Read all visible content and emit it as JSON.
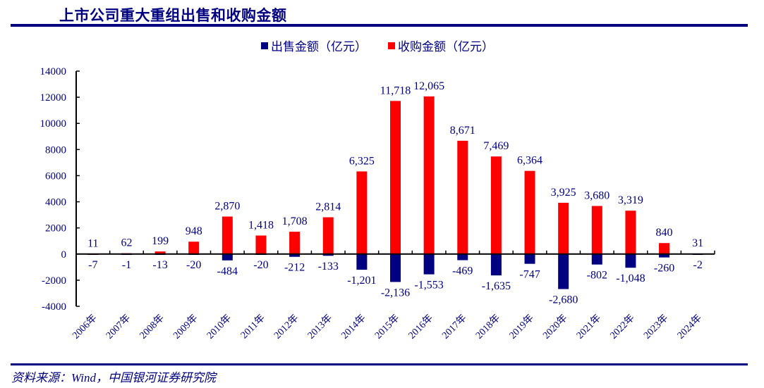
{
  "header": {
    "title": "上市公司重大重组出售和收购金额"
  },
  "footer": {
    "source": "资料来源：Wind，中国银河证券研究院"
  },
  "colors": {
    "sell": "#000080",
    "buy": "#FF0000",
    "text": "#000080",
    "axis": "#000000"
  },
  "chart_data": {
    "type": "bar",
    "title": "上市公司重大重组出售和收购金额",
    "xlabel": "",
    "ylabel": "",
    "ylim": [
      -4000,
      14000
    ],
    "yticks": [
      -4000,
      -2000,
      0,
      2000,
      4000,
      6000,
      8000,
      10000,
      12000,
      14000
    ],
    "grid": false,
    "legend": "top-center",
    "categories": [
      "2006年",
      "2007年",
      "2008年",
      "2009年",
      "2010年",
      "2011年",
      "2012年",
      "2013年",
      "2014年",
      "2015年",
      "2016年",
      "2017年",
      "2018年",
      "2019年",
      "2020年",
      "2021年",
      "2022年",
      "2023年",
      "2024年"
    ],
    "series": [
      {
        "name": "出售金额（亿元）",
        "color": "#000080",
        "values": [
          -7,
          -1,
          -13,
          -20,
          -484,
          -20,
          -212,
          -133,
          -1201,
          -2136,
          -1553,
          -469,
          -1635,
          -747,
          -2680,
          -802,
          -1048,
          -260,
          -2
        ],
        "labels": [
          "-7",
          "-1",
          "-13",
          "-20",
          "-484",
          "-20",
          "-212",
          "-133",
          "-1,201",
          "-2,136",
          "-1,553",
          "-469",
          "-1,635",
          "-747",
          "-2,680",
          "-802",
          "-1,048",
          "-260",
          "-2"
        ]
      },
      {
        "name": "收购金额（亿元）",
        "color": "#FF0000",
        "values": [
          11,
          62,
          199,
          948,
          2870,
          1418,
          1708,
          2814,
          6325,
          11718,
          12065,
          8671,
          7469,
          6364,
          3925,
          3680,
          3319,
          840,
          31
        ],
        "labels": [
          "11",
          "62",
          "199",
          "948",
          "2,870",
          "1,418",
          "1,708",
          "2,814",
          "6,325",
          "11,718",
          "12,065",
          "8,671",
          "7,469",
          "6,364",
          "3,925",
          "3,680",
          "3,319",
          "840",
          "31"
        ]
      }
    ]
  }
}
